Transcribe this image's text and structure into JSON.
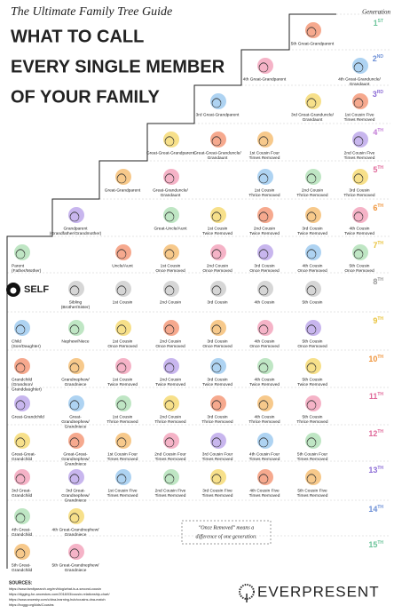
{
  "header": {
    "script_title": "The Ultimate Family Tree Guide",
    "title_lines": [
      "WHAT TO CALL",
      "EVERY SINGLE MEMBER",
      "OF YOUR FAMILY"
    ],
    "generation_heading": "Generation"
  },
  "generations": [
    {
      "number": "1",
      "suffix": "ST",
      "cells": [
        null,
        null,
        null,
        null,
        null,
        null,
        [
          "5th Great-Grandparent"
        ],
        null
      ]
    },
    {
      "number": "2",
      "suffix": "ND",
      "cells": [
        null,
        null,
        null,
        null,
        null,
        [
          "4th Great-Grandparent"
        ],
        null,
        [
          "4th Great-Granduncle/",
          "Grandaunt"
        ]
      ]
    },
    {
      "number": "3",
      "suffix": "RD",
      "cells": [
        null,
        null,
        null,
        null,
        [
          "3rd Great-Grandparent"
        ],
        null,
        [
          "3rd Great-Granduncle/",
          "Grandaunt"
        ],
        [
          "1st Cousin Five",
          "Times Removed"
        ]
      ]
    },
    {
      "number": "4",
      "suffix": "TH",
      "cells": [
        null,
        null,
        null,
        [
          "Great-Great-Grandparent"
        ],
        [
          "Great-Great-Granduncle/",
          "Grandaunt"
        ],
        [
          "1st Cousin Four",
          "Times Removed"
        ],
        null,
        [
          "2nd Cousin Five",
          "Times Removed"
        ]
      ]
    },
    {
      "number": "5",
      "suffix": "TH",
      "cells": [
        null,
        null,
        [
          "Great-Grandparent"
        ],
        [
          "Great-Granduncle/",
          "Grandaunt"
        ],
        null,
        [
          "1st Cousin",
          "Thrice Removed"
        ],
        [
          "2nd Cousin",
          "Thrice Removed"
        ],
        [
          "3rd Cousin",
          "Thrice Removed"
        ]
      ]
    },
    {
      "number": "6",
      "suffix": "TH",
      "cells": [
        null,
        [
          "Grandparent",
          "(Grandfather/Grandmother)"
        ],
        null,
        [
          "Great-Uncle/Aunt"
        ],
        [
          "1st Cousin",
          "Twice Removed"
        ],
        [
          "2nd Cousin",
          "Twice Removed"
        ],
        [
          "3rd Cousin",
          "Twice Removed"
        ],
        [
          "4th Cousin",
          "Twice Removed"
        ]
      ]
    },
    {
      "number": "7",
      "suffix": "TH",
      "cells": [
        [
          "Parent",
          "(Father/Mother)"
        ],
        null,
        [
          "Uncle/Aunt"
        ],
        [
          "1st Cousin",
          "Once Removed"
        ],
        [
          "2nd Cousin",
          "Once Removed"
        ],
        [
          "3rd Cousin",
          "Once Removed"
        ],
        [
          "4th Cousin",
          "Once Removed"
        ],
        [
          "5th Cousin",
          "Once Removed"
        ]
      ]
    },
    {
      "number": "8",
      "suffix": "TH",
      "cells": [
        [
          "SELF"
        ],
        [
          "Sibling",
          "(Brother/Sister)"
        ],
        [
          "1st Cousin"
        ],
        [
          "2nd Cousin"
        ],
        [
          "3rd Cousin"
        ],
        [
          "4th Cousin"
        ],
        [
          "5th Cousin"
        ],
        null
      ]
    },
    {
      "number": "9",
      "suffix": "TH",
      "cells": [
        [
          "Child",
          "(Son/Daughter)"
        ],
        [
          "Nephew/Niece"
        ],
        [
          "1st Cousin",
          "Once Removed"
        ],
        [
          "2nd Cousin",
          "Once Removed"
        ],
        [
          "3rd Cousin",
          "Once Removed"
        ],
        [
          "4th Cousin",
          "Once Removed"
        ],
        [
          "5th Cousin",
          "Once Removed"
        ],
        null
      ]
    },
    {
      "number": "10",
      "suffix": "TH",
      "cells": [
        [
          "Grandchild",
          "(Grandson/",
          "Granddaughter)"
        ],
        [
          "Grandnephew/",
          "Grandniece"
        ],
        [
          "1st Cousin",
          "Twice Removed"
        ],
        [
          "2nd Cousin",
          "Twice Removed"
        ],
        [
          "3rd Cousin",
          "Twice Removed"
        ],
        [
          "4th Cousin",
          "Twice Removed"
        ],
        [
          "5th Cousin",
          "Twice Removed"
        ],
        null
      ]
    },
    {
      "number": "11",
      "suffix": "TH",
      "cells": [
        [
          "Great-Grandchild"
        ],
        [
          "Great-",
          "Grandnephew/",
          "Grandniece"
        ],
        [
          "1st Cousin",
          "Thrice Removed"
        ],
        [
          "2nd Cousin",
          "Thrice Removed"
        ],
        [
          "3rd Cousin",
          "Thrice Removed"
        ],
        [
          "4th Cousin",
          "Thrice Removed"
        ],
        [
          "5th Cousin",
          "Thrice Removed"
        ],
        null
      ]
    },
    {
      "number": "12",
      "suffix": "TH",
      "cells": [
        [
          "Great-Great-",
          "Grandchild"
        ],
        [
          "Great-Great-",
          "Grandnephew/",
          "Grandniece"
        ],
        [
          "1st Cousin Four",
          "Times Removed"
        ],
        [
          "2nd Cousin Four",
          "Times Removed"
        ],
        [
          "3rd Cousin Four",
          "Times Removed"
        ],
        [
          "4th Cousin Four",
          "Times Removed"
        ],
        [
          "5th Cousin Four",
          "Times Removed"
        ],
        null
      ]
    },
    {
      "number": "13",
      "suffix": "TH",
      "cells": [
        [
          "3rd Great-",
          "Grandchild"
        ],
        [
          "3rd Great-",
          "Grandnephew/",
          "Grandniece"
        ],
        [
          "1st Cousin Five",
          "Times Removed"
        ],
        [
          "2nd Cousin Five",
          "Times Removed"
        ],
        [
          "3rd Cousin Five",
          "Times Removed"
        ],
        [
          "4th Cousin Five",
          "Times Removed"
        ],
        [
          "5th Cousin Five",
          "Times Removed"
        ],
        null
      ]
    },
    {
      "number": "14",
      "suffix": "TH",
      "cells": [
        [
          "4th Great-",
          "Grandchild"
        ],
        [
          "4th Great-Grandnephew/",
          "Grandniece"
        ],
        null,
        null,
        null,
        null,
        null,
        null
      ]
    },
    {
      "number": "15",
      "suffix": "TH",
      "cells": [
        [
          "5th Great-",
          "Grandchild"
        ],
        [
          "5th Great-Grandnephew/",
          "Grandniece"
        ],
        null,
        null,
        null,
        null,
        null,
        null
      ]
    }
  ],
  "note": [
    "\"Once Removed\" means a",
    "difference of one generation."
  ],
  "sources": {
    "heading": "SOURCES:",
    "links": [
      "https://www.familysearch.org/en/blog/what-is-a-second-cousin",
      "https://digging-for-ancestors.com/2018/03/cousin-relationship-chart/",
      "https://www.ancestry.com/c/dna-learning-hub/cousins-dna-match",
      "https://boggy.org/kids/Cousins"
    ]
  },
  "logo": "EVERPRESENT"
}
